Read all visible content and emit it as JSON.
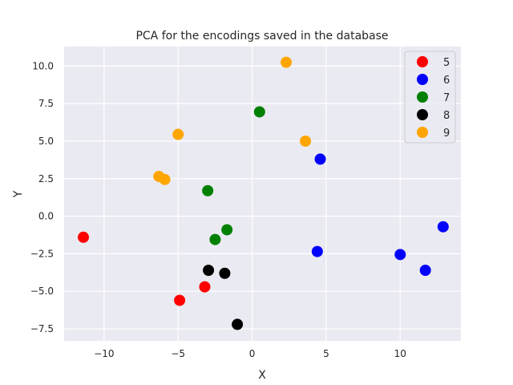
{
  "chart_data": {
    "type": "scatter",
    "title": "PCA for the encodings saved in the database",
    "xlabel": "X",
    "ylabel": "Y",
    "xlim": [
      -12.7,
      14.1
    ],
    "ylim": [
      -8.3,
      11.3
    ],
    "xticks": [
      -10,
      -5,
      0,
      5,
      10
    ],
    "xtick_labels": [
      "−10",
      "−5",
      "0",
      "5",
      "10"
    ],
    "yticks": [
      -7.5,
      -5.0,
      -2.5,
      0.0,
      2.5,
      5.0,
      7.5,
      10.0
    ],
    "ytick_labels": [
      "−7.5",
      "−5.0",
      "−2.5",
      "0.0",
      "2.5",
      "5.0",
      "7.5",
      "10.0"
    ],
    "grid": true,
    "legend_position": "top-right",
    "series": [
      {
        "name": "5",
        "color": "#ff0000",
        "points": [
          [
            -11.4,
            -1.4
          ],
          [
            -3.2,
            -4.7
          ],
          [
            -4.9,
            -5.6
          ]
        ]
      },
      {
        "name": "6",
        "color": "#0000ff",
        "points": [
          [
            4.6,
            3.8
          ],
          [
            4.4,
            -2.35
          ],
          [
            10.0,
            -2.55
          ],
          [
            11.7,
            -3.6
          ],
          [
            12.9,
            -0.7
          ]
        ]
      },
      {
        "name": "7",
        "color": "#008000",
        "points": [
          [
            0.5,
            6.95
          ],
          [
            -3.0,
            1.7
          ],
          [
            -1.7,
            -0.9
          ],
          [
            -2.5,
            -1.55
          ]
        ]
      },
      {
        "name": "8",
        "color": "#000000",
        "points": [
          [
            -2.95,
            -3.6
          ],
          [
            -1.85,
            -3.8
          ],
          [
            -1.0,
            -7.2
          ]
        ]
      },
      {
        "name": "9",
        "color": "#ffa500",
        "points": [
          [
            2.3,
            10.25
          ],
          [
            3.6,
            5.0
          ],
          [
            -5.0,
            5.45
          ],
          [
            -6.3,
            2.65
          ],
          [
            -5.9,
            2.45
          ]
        ]
      }
    ]
  }
}
